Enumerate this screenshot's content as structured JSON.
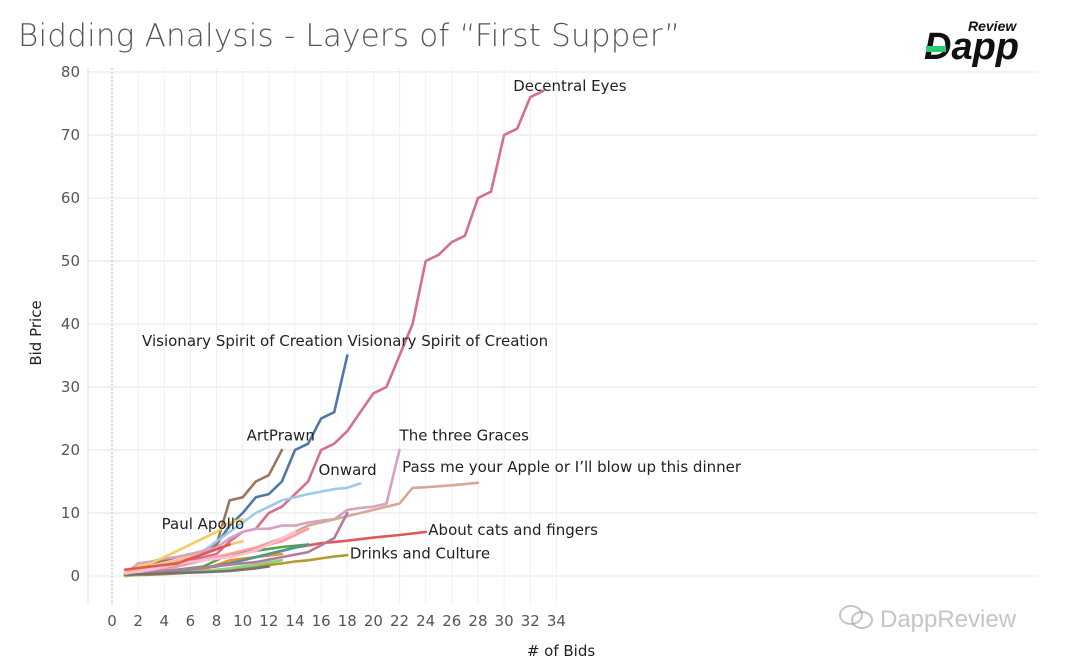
{
  "title": "Bidding Analysis - Layers of “First Supper”",
  "logo": {
    "review": "Review",
    "main": "Dapp"
  },
  "watermark": "DappReview",
  "chart_data": {
    "type": "line",
    "xlabel": "# of Bids",
    "ylabel": "Bid Price",
    "xlim": [
      -0.5,
      35
    ],
    "ylim": [
      -4,
      82
    ],
    "xticks": [
      0,
      2,
      4,
      6,
      8,
      10,
      12,
      14,
      16,
      18,
      20,
      22,
      24,
      26,
      28,
      30,
      32,
      34
    ],
    "yticks": [
      0,
      10,
      20,
      30,
      40,
      50,
      60,
      70,
      80
    ],
    "grid": true,
    "series": [
      {
        "name": "Decentral Eyes",
        "color": "#d4708d",
        "x": [
          1,
          2,
          3,
          4,
          5,
          6,
          7,
          8,
          9,
          10,
          11,
          12,
          13,
          14,
          15,
          16,
          17,
          18,
          19,
          20,
          21,
          22,
          23,
          24,
          25,
          26,
          27,
          28,
          29,
          30,
          31,
          32,
          33
        ],
        "y": [
          0.2,
          0.5,
          1,
          1.5,
          2,
          2.5,
          3,
          3.5,
          5.5,
          7,
          7.5,
          10,
          11,
          13,
          15,
          20,
          21,
          23,
          26,
          29,
          30,
          35,
          40,
          50,
          51,
          53,
          54,
          60,
          61,
          70,
          71,
          76,
          77
        ]
      },
      {
        "name": "Visionary Spirit of Creation",
        "color": "#4e79a7",
        "x": [
          1,
          2,
          3,
          4,
          5,
          6,
          7,
          8,
          9,
          10,
          11,
          12,
          13,
          14,
          15,
          16,
          17,
          18
        ],
        "y": [
          0.3,
          0.6,
          1,
          1.5,
          2.2,
          3,
          4,
          5,
          8,
          10,
          12.5,
          13,
          15,
          20,
          21,
          25,
          26,
          35
        ]
      },
      {
        "name": "ArtPrawn",
        "color": "#9c755f",
        "x": [
          1,
          2,
          3,
          4,
          5,
          6,
          7,
          8,
          9,
          10,
          11,
          12,
          13
        ],
        "y": [
          0.5,
          1,
          2,
          2.5,
          3,
          3.5,
          3.8,
          5,
          12,
          12.5,
          15,
          16,
          20
        ]
      },
      {
        "name": "Onward",
        "color": "#9ecae9",
        "x": [
          1,
          3,
          5,
          7,
          9,
          11,
          13,
          15,
          17,
          18,
          19
        ],
        "y": [
          0.3,
          1,
          2,
          4,
          7,
          10,
          12,
          13,
          13.8,
          14,
          14.7
        ]
      },
      {
        "name": "The three Graces",
        "color": "#d7a1c4",
        "x": [
          1,
          2,
          3,
          4,
          5,
          6,
          7,
          8,
          9,
          10,
          11,
          12,
          13,
          14,
          15,
          16,
          17,
          18,
          19,
          20,
          21,
          22
        ],
        "y": [
          0.3,
          2,
          2.3,
          2.8,
          3,
          3.5,
          4,
          4.5,
          6,
          7,
          7.5,
          7.5,
          8,
          8,
          8.5,
          8.8,
          9,
          10.5,
          10.8,
          11,
          11.5,
          20
        ]
      },
      {
        "name": "Pass me your Apple or I’ll blow up this dinner",
        "color": "#d4a995",
        "x": [
          1,
          3,
          5,
          7,
          9,
          11,
          13,
          15,
          17,
          19,
          21,
          22,
          23,
          24,
          26,
          28
        ],
        "y": [
          0.2,
          0.8,
          1.5,
          2.5,
          3.5,
          4.5,
          6,
          8,
          9,
          10,
          11,
          11.5,
          14,
          14.1,
          14.4,
          14.8
        ]
      },
      {
        "name": "About cats and fingers",
        "color": "#e15759",
        "x": [
          1,
          2,
          4,
          6,
          8,
          10,
          12,
          14,
          16,
          18,
          20,
          22,
          24
        ],
        "y": [
          0.1,
          0.2,
          0.5,
          1,
          1.5,
          2.5,
          3.5,
          4.5,
          5.2,
          5.6,
          6.1,
          6.5,
          7
        ]
      },
      {
        "name": "Drinks and Culture",
        "color": "#b6992d",
        "x": [
          1,
          3,
          5,
          7,
          9,
          11,
          13,
          14,
          15,
          16,
          17,
          18
        ],
        "y": [
          0.1,
          0.2,
          0.4,
          0.7,
          1,
          1.5,
          2,
          2.3,
          2.5,
          2.8,
          3.1,
          3.3
        ]
      },
      {
        "name": "Paul Apollo",
        "color": "#f1ce63",
        "x": [
          1,
          2,
          3,
          4,
          5,
          6,
          7,
          8,
          9,
          10
        ],
        "y": [
          0.5,
          1.5,
          2,
          3,
          4,
          5,
          6,
          7,
          8.5,
          9
        ]
      },
      {
        "name": "",
        "color": "#59a14f",
        "x": [
          1,
          3,
          5,
          7,
          9,
          11,
          13,
          15
        ],
        "y": [
          0.2,
          0.5,
          1,
          1.5,
          3.5,
          4,
          4.6,
          5
        ]
      },
      {
        "name": "",
        "color": "#f28e2b",
        "x": [
          1,
          3,
          5,
          7,
          9,
          11,
          13
        ],
        "y": [
          0,
          0.3,
          0.5,
          1,
          2.5,
          3,
          3.5
        ]
      },
      {
        "name": "",
        "color": "#499894",
        "x": [
          1,
          3,
          5,
          7,
          9,
          11,
          13,
          15
        ],
        "y": [
          0.1,
          0.4,
          0.8,
          1.3,
          2,
          3,
          4,
          5
        ]
      },
      {
        "name": "",
        "color": "#b07aa1",
        "x": [
          1,
          3,
          5,
          7,
          9,
          11,
          13,
          15,
          17,
          18
        ],
        "y": [
          0.3,
          0.6,
          1,
          1.3,
          1.8,
          2.2,
          3,
          3.8,
          6,
          10
        ]
      },
      {
        "name": "",
        "color": "#ff9d9a",
        "x": [
          1,
          3,
          5,
          7,
          9,
          11,
          13,
          15
        ],
        "y": [
          0.2,
          1,
          1.8,
          2.5,
          3.5,
          4.5,
          5.5,
          7.5
        ]
      },
      {
        "name": "",
        "color": "#8cd17d",
        "x": [
          1,
          3,
          5,
          7,
          9,
          11,
          13
        ],
        "y": [
          0.1,
          0.3,
          0.5,
          0.8,
          1.2,
          1.8,
          2.5
        ]
      },
      {
        "name": "",
        "color": "#ffbe7d",
        "x": [
          1,
          3,
          5,
          7,
          9,
          10
        ],
        "y": [
          0.5,
          1.5,
          2.5,
          3.5,
          5,
          5.5
        ]
      },
      {
        "name": "",
        "color": "#79706e",
        "x": [
          1,
          3,
          5,
          7,
          9,
          11,
          12
        ],
        "y": [
          0.2,
          0.3,
          0.5,
          0.6,
          0.8,
          1.2,
          1.5
        ]
      },
      {
        "name": "",
        "color": "#fabfd2",
        "x": [
          1,
          3,
          5,
          7,
          9,
          11,
          12,
          14
        ],
        "y": [
          0.4,
          1,
          2,
          2.5,
          3,
          4,
          5,
          7
        ]
      },
      {
        "name": "",
        "color": "#e15759",
        "x": [
          1,
          3,
          5,
          7,
          9
        ],
        "y": [
          1,
          1.5,
          2,
          3.5,
          5
        ]
      }
    ],
    "annotations": [
      {
        "text": "Decentral Eyes",
        "x": 30.7,
        "y": 77
      },
      {
        "text": "Visionary Spirit of Creation Visionary Spirit of Creation",
        "x": 2.3,
        "y": 36.5
      },
      {
        "text": "ArtPrawn",
        "x": 10.3,
        "y": 21.5
      },
      {
        "text": "Onward",
        "x": 15.8,
        "y": 16
      },
      {
        "text": "The three Graces",
        "x": 22.0,
        "y": 21.5
      },
      {
        "text": "Pass me your Apple or I’ll blow up this dinner",
        "x": 22.2,
        "y": 16.5
      },
      {
        "text": "Paul Apollo",
        "x": 3.8,
        "y": 7.5
      },
      {
        "text": "About cats and fingers",
        "x": 24.2,
        "y": 6.5
      },
      {
        "text": "Drinks and Culture",
        "x": 18.2,
        "y": 2.8
      }
    ]
  }
}
